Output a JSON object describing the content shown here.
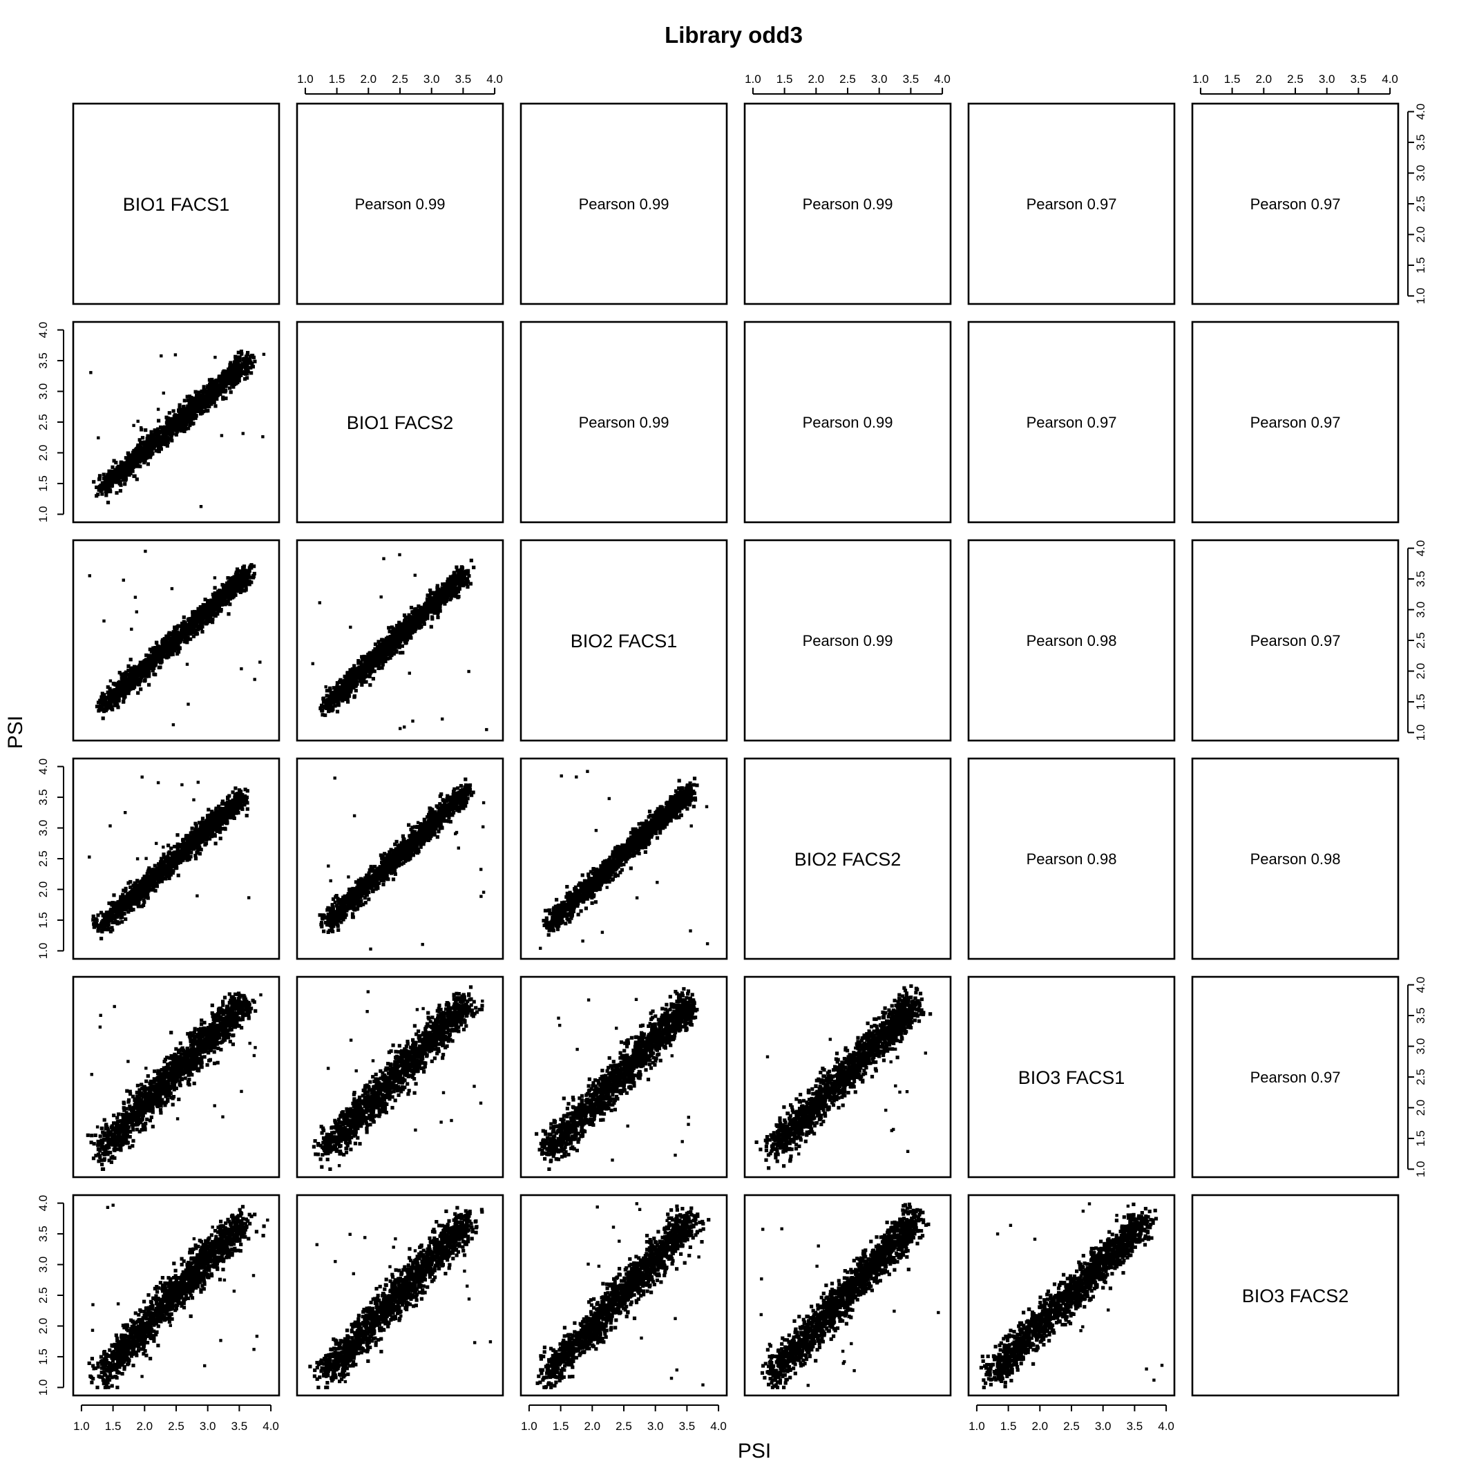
{
  "chart_data": {
    "type": "scatter",
    "title": "Library odd3",
    "xlabel": "PSI",
    "ylabel": "PSI",
    "variables": [
      "BIO1 FACS1",
      "BIO1 FACS2",
      "BIO2 FACS1",
      "BIO2 FACS2",
      "BIO3 FACS1",
      "BIO3 FACS2"
    ],
    "xlim": [
      1.0,
      4.0
    ],
    "ylim": [
      1.0,
      4.0
    ],
    "ticks": [
      "1.0",
      "1.5",
      "2.0",
      "2.5",
      "3.0",
      "3.5",
      "4.0"
    ],
    "tick_values": [
      1.0,
      1.5,
      2.0,
      2.5,
      3.0,
      3.5,
      4.0
    ],
    "grid": false,
    "correlations": [
      {
        "row": 0,
        "col": 1,
        "label": "Pearson 0.99",
        "r": 0.99
      },
      {
        "row": 0,
        "col": 2,
        "label": "Pearson 0.99",
        "r": 0.99
      },
      {
        "row": 0,
        "col": 3,
        "label": "Pearson 0.99",
        "r": 0.99
      },
      {
        "row": 0,
        "col": 4,
        "label": "Pearson 0.97",
        "r": 0.97
      },
      {
        "row": 0,
        "col": 5,
        "label": "Pearson 0.97",
        "r": 0.97
      },
      {
        "row": 1,
        "col": 2,
        "label": "Pearson 0.99",
        "r": 0.99
      },
      {
        "row": 1,
        "col": 3,
        "label": "Pearson 0.99",
        "r": 0.99
      },
      {
        "row": 1,
        "col": 4,
        "label": "Pearson 0.97",
        "r": 0.97
      },
      {
        "row": 1,
        "col": 5,
        "label": "Pearson 0.97",
        "r": 0.97
      },
      {
        "row": 2,
        "col": 3,
        "label": "Pearson 0.99",
        "r": 0.99
      },
      {
        "row": 2,
        "col": 4,
        "label": "Pearson 0.98",
        "r": 0.98
      },
      {
        "row": 2,
        "col": 5,
        "label": "Pearson 0.97",
        "r": 0.97
      },
      {
        "row": 3,
        "col": 4,
        "label": "Pearson 0.98",
        "r": 0.98
      },
      {
        "row": 3,
        "col": 5,
        "label": "Pearson 0.98",
        "r": 0.98
      },
      {
        "row": 4,
        "col": 5,
        "label": "Pearson 0.97",
        "r": 0.97
      }
    ],
    "scatter_panels": [
      {
        "row": 1,
        "col": 0,
        "x_range": [
          1.2,
          3.9
        ],
        "y_range": [
          1.3,
          3.7
        ]
      },
      {
        "row": 2,
        "col": 0,
        "x_range": [
          1.2,
          3.9
        ],
        "y_range": [
          1.3,
          3.8
        ]
      },
      {
        "row": 2,
        "col": 1,
        "x_range": [
          1.2,
          3.8
        ],
        "y_range": [
          1.3,
          3.8
        ]
      },
      {
        "row": 3,
        "col": 0,
        "x_range": [
          1.2,
          3.8
        ],
        "y_range": [
          1.3,
          3.7
        ]
      },
      {
        "row": 3,
        "col": 1,
        "x_range": [
          1.2,
          3.8
        ],
        "y_range": [
          1.3,
          3.8
        ]
      },
      {
        "row": 3,
        "col": 2,
        "x_range": [
          1.2,
          3.8
        ],
        "y_range": [
          1.3,
          3.8
        ]
      },
      {
        "row": 4,
        "col": 0,
        "x_range": [
          1.2,
          3.8
        ],
        "y_range": [
          1.2,
          3.9
        ]
      },
      {
        "row": 4,
        "col": 1,
        "x_range": [
          1.2,
          3.8
        ],
        "y_range": [
          1.2,
          3.9
        ]
      },
      {
        "row": 4,
        "col": 2,
        "x_range": [
          1.2,
          3.8
        ],
        "y_range": [
          1.2,
          3.9
        ]
      },
      {
        "row": 4,
        "col": 3,
        "x_range": [
          1.2,
          3.8
        ],
        "y_range": [
          1.2,
          3.9
        ]
      },
      {
        "row": 5,
        "col": 0,
        "x_range": [
          1.2,
          3.8
        ],
        "y_range": [
          1.1,
          3.9
        ]
      },
      {
        "row": 5,
        "col": 1,
        "x_range": [
          1.2,
          3.8
        ],
        "y_range": [
          1.1,
          3.9
        ]
      },
      {
        "row": 5,
        "col": 2,
        "x_range": [
          1.2,
          3.8
        ],
        "y_range": [
          1.1,
          3.9
        ]
      },
      {
        "row": 5,
        "col": 3,
        "x_range": [
          1.2,
          3.8
        ],
        "y_range": [
          1.1,
          3.9
        ]
      },
      {
        "row": 5,
        "col": 4,
        "x_range": [
          1.1,
          3.9
        ],
        "y_range": [
          1.1,
          3.9
        ]
      }
    ]
  }
}
